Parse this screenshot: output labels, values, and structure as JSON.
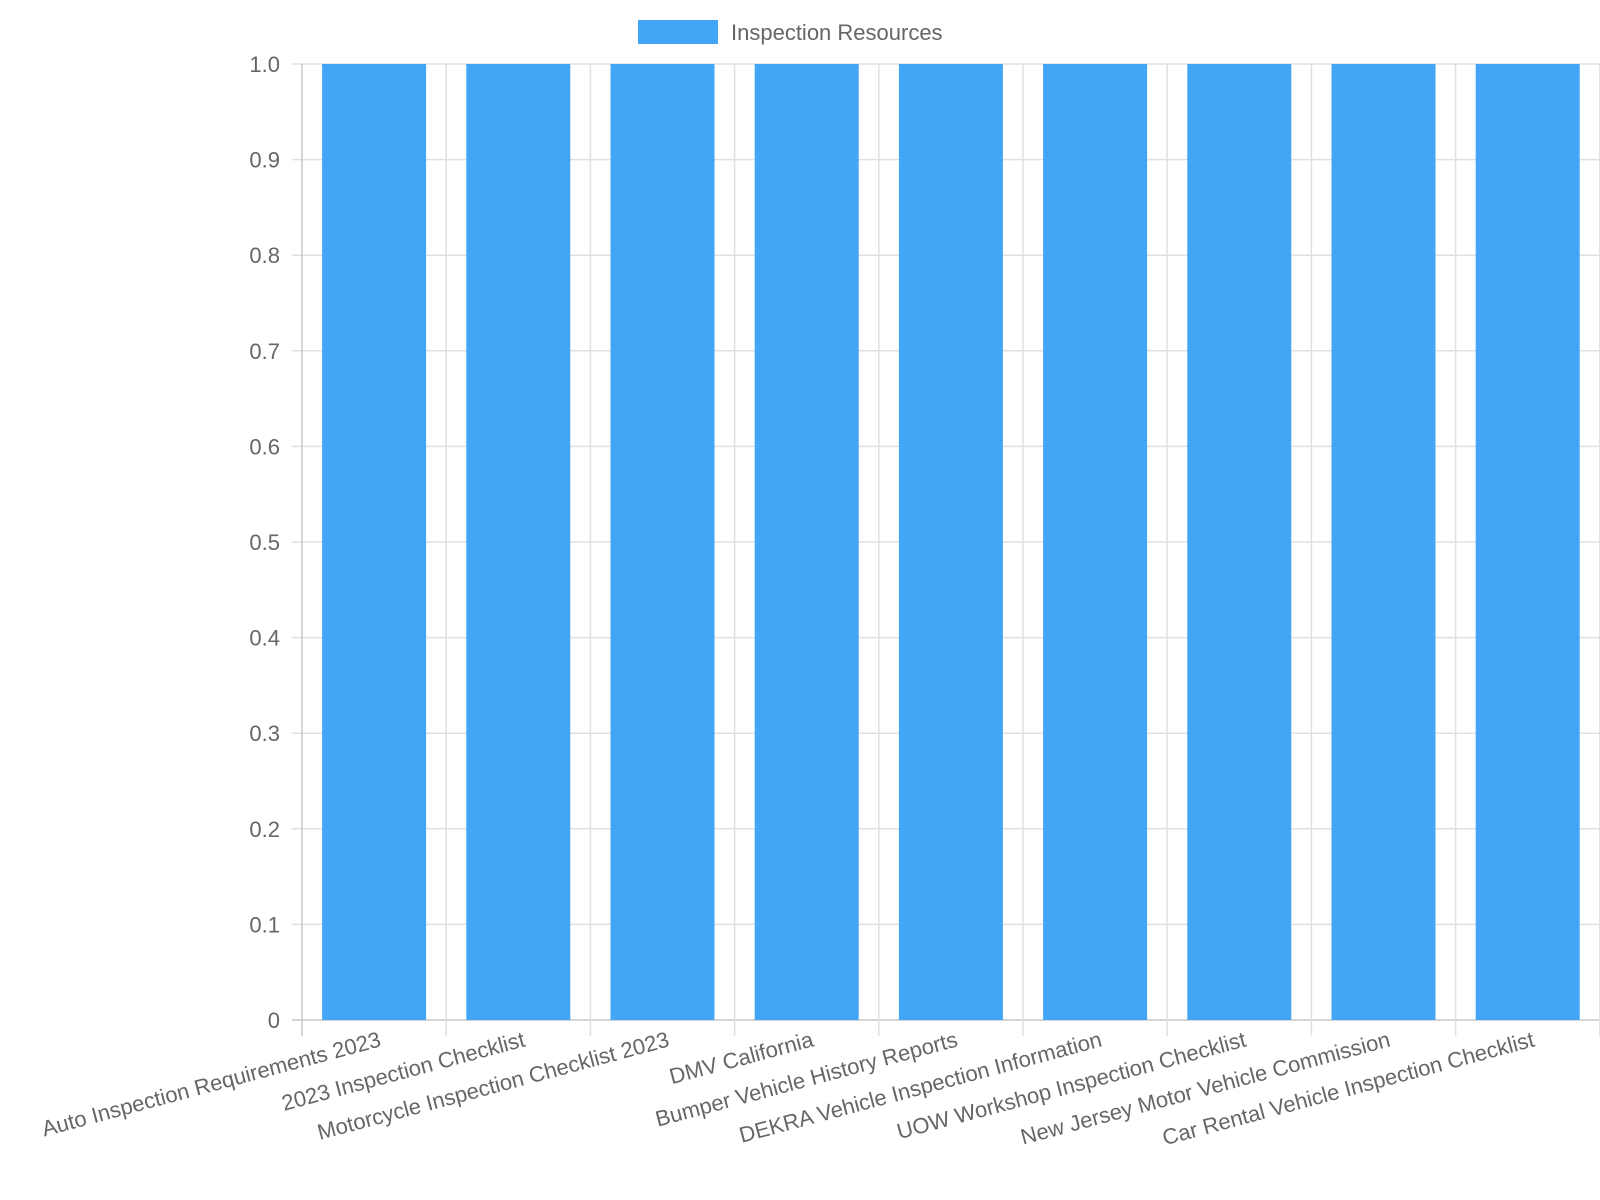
{
  "legend": {
    "label": "Inspection Resources"
  },
  "colors": {
    "bar": "#42a5f5",
    "grid": "#e0e0e0",
    "axis": "#c8c8c8",
    "text": "#666666"
  },
  "chart_data": {
    "type": "bar",
    "categories": [
      "Auto Inspection Requirements 2023",
      "2023 Inspection Checklist",
      "Motorcycle Inspection Checklist 2023",
      "DMV California",
      "Bumper Vehicle History Reports",
      "DEKRA Vehicle Inspection Information",
      "UOW Workshop Inspection Checklist",
      "New Jersey Motor Vehicle Commission",
      "Car Rental Vehicle Inspection Checklist"
    ],
    "series": [
      {
        "name": "Inspection Resources",
        "values": [
          1,
          1,
          1,
          1,
          1,
          1,
          1,
          1,
          1
        ]
      }
    ],
    "yticks": [
      "0",
      "0.1",
      "0.2",
      "0.3",
      "0.4",
      "0.5",
      "0.6",
      "0.7",
      "0.8",
      "0.9",
      "1.0"
    ],
    "ylim": [
      0,
      1
    ],
    "grid": true,
    "legend_position": "top"
  }
}
